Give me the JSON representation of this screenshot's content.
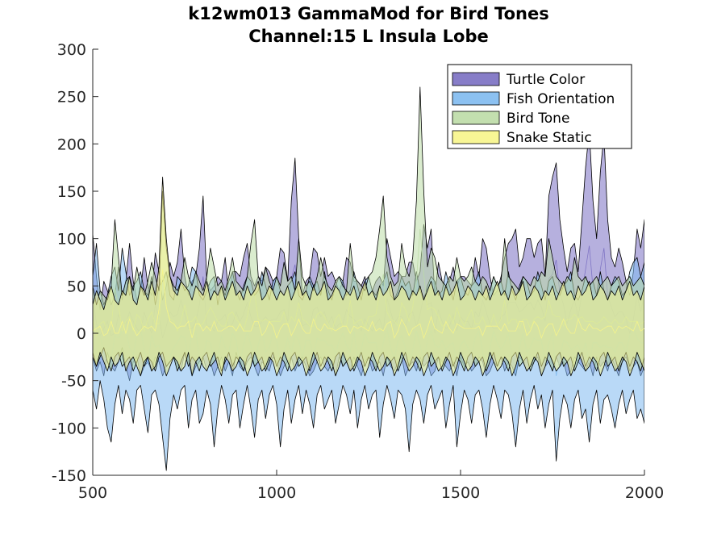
{
  "chart_data": {
    "type": "area",
    "title_lines": [
      "k12wm013 GammaMod for Bird Tones",
      "Channel:15 L Insula Lobe"
    ],
    "xlabel": "",
    "ylabel": "",
    "xlim": [
      500,
      2000
    ],
    "ylim": [
      -150,
      300
    ],
    "x_ticks": [
      500,
      1000,
      1500,
      2000
    ],
    "y_ticks": [
      300,
      250,
      200,
      150,
      100,
      50,
      0,
      -50,
      -100,
      -150
    ],
    "x_tick_labels": [
      "500",
      "1000",
      "1500",
      "2000"
    ],
    "y_tick_labels": [
      "300",
      "250",
      "200",
      "150",
      "100",
      "50",
      "0",
      "-50",
      "-100",
      "-150"
    ],
    "legend_position": "top-right",
    "x_step": 10,
    "series": [
      {
        "name": "Turtle Color",
        "color": "#7a6fc2",
        "upper": [
          105,
          60,
          25,
          55,
          45,
          30,
          40,
          70,
          35,
          55,
          95,
          55,
          35,
          45,
          80,
          50,
          40,
          85,
          65,
          35,
          50,
          75,
          60,
          75,
          110,
          60,
          40,
          55,
          60,
          90,
          145,
          55,
          45,
          50,
          60,
          55,
          80,
          40,
          65,
          65,
          60,
          80,
          95,
          60,
          50,
          60,
          55,
          70,
          65,
          55,
          60,
          90,
          85,
          55,
          140,
          185,
          100,
          40,
          55,
          60,
          90,
          85,
          60,
          80,
          60,
          65,
          55,
          45,
          55,
          80,
          75,
          55,
          55,
          50,
          60,
          40,
          45,
          55,
          60,
          50,
          100,
          80,
          60,
          65,
          60,
          60,
          75,
          75,
          55,
          65,
          115,
          90,
          110,
          40,
          75,
          55,
          45,
          55,
          70,
          50,
          60,
          60,
          55,
          50,
          80,
          60,
          100,
          90,
          60,
          40,
          45,
          60,
          80,
          95,
          100,
          110,
          70,
          80,
          100,
          100,
          80,
          95,
          100,
          60,
          145,
          165,
          180,
          120,
          90,
          65,
          90,
          95,
          65,
          120,
          175,
          215,
          140,
          100,
          170,
          210,
          120,
          80,
          70,
          90,
          75,
          55,
          40,
          65,
          110,
          90,
          120
        ],
        "lower": [
          -25,
          -40,
          -30,
          -45,
          -20,
          -35,
          -40,
          -30,
          -15,
          -35,
          -50,
          -30,
          -25,
          -45,
          -35,
          -30,
          -40,
          -25,
          -30,
          -45,
          -35,
          -30,
          -25,
          -35,
          -40,
          -20,
          -30,
          -45,
          -35,
          -30,
          -25,
          -40,
          -30,
          -45,
          -35,
          -25,
          -40,
          -30,
          -45,
          -20,
          -35,
          -40,
          -30,
          -25,
          -35,
          -45,
          -30,
          -35,
          -40,
          -25,
          -30,
          -45,
          -35,
          -30,
          -25,
          -40,
          -30,
          -25,
          -35,
          -45,
          -40,
          -30,
          -25,
          -35,
          -40,
          -30,
          -45,
          -25,
          -35,
          -30,
          -40,
          -25,
          -35,
          -45,
          -30,
          -25,
          -40,
          -35,
          -30,
          -45,
          -25,
          -35,
          -40,
          -30,
          -25,
          -45,
          -35,
          -30,
          -40,
          -25,
          -35,
          -30,
          -45,
          -40,
          -25,
          -30,
          -35,
          -40,
          -30,
          -45,
          -25,
          -35,
          -30,
          -40,
          -35,
          -25,
          -30,
          -45,
          -40,
          -30,
          -35,
          -25,
          -40,
          -30,
          -35,
          -45,
          -25,
          -30,
          -40,
          -35,
          -30,
          -25,
          -45,
          -35,
          -30,
          -40,
          -25,
          -35,
          -30,
          -45,
          -40,
          -25,
          -30,
          -35,
          -40,
          -30,
          -45,
          -25,
          -35,
          -30,
          -40,
          -25,
          -35,
          -45,
          -30,
          -25,
          -40,
          -35,
          -30,
          -45,
          -35
        ]
      },
      {
        "name": "Fish Orientation",
        "color": "#7fbaf0",
        "upper": [
          60,
          95,
          45,
          30,
          40,
          60,
          70,
          45,
          90,
          65,
          40,
          50,
          55,
          65,
          45,
          40,
          60,
          30,
          50,
          55,
          65,
          40,
          35,
          60,
          55,
          45,
          50,
          70,
          65,
          40,
          35,
          45,
          55,
          60,
          30,
          50,
          40,
          55,
          65,
          45,
          35,
          50,
          60,
          55,
          40,
          45,
          65,
          50,
          35,
          55,
          60,
          45,
          40,
          50,
          55,
          65,
          40,
          35,
          45,
          60,
          50,
          55,
          40,
          65,
          45,
          35,
          50,
          60,
          55,
          40,
          45,
          65,
          50,
          35,
          55,
          60,
          45,
          40,
          50,
          55,
          65,
          40,
          35,
          45,
          60,
          50,
          55,
          40,
          65,
          45,
          35,
          50,
          60,
          55,
          40,
          45,
          65,
          50,
          35,
          55,
          60,
          45,
          40,
          50,
          55,
          65,
          40,
          35,
          45,
          60,
          50,
          55,
          40,
          65,
          45,
          35,
          50,
          60,
          55,
          40,
          45,
          65,
          50,
          35,
          55,
          60,
          45,
          40,
          50,
          55,
          65,
          40,
          35,
          45,
          60,
          50,
          55,
          40,
          65,
          45,
          35,
          50,
          60,
          55,
          40,
          45,
          65,
          75,
          80,
          60,
          75
        ],
        "lower": [
          -60,
          -80,
          -50,
          -70,
          -100,
          -115,
          -75,
          -55,
          -85,
          -60,
          -70,
          -95,
          -60,
          -55,
          -80,
          -105,
          -65,
          -60,
          -75,
          -110,
          -145,
          -90,
          -65,
          -80,
          -60,
          -55,
          -100,
          -70,
          -60,
          -95,
          -85,
          -60,
          -75,
          -120,
          -80,
          -55,
          -70,
          -95,
          -65,
          -60,
          -100,
          -75,
          -55,
          -80,
          -110,
          -70,
          -60,
          -90,
          -65,
          -55,
          -75,
          -120,
          -80,
          -60,
          -95,
          -70,
          -55,
          -85,
          -60,
          -75,
          -100,
          -65,
          -55,
          -80,
          -70,
          -60,
          -95,
          -75,
          -55,
          -65,
          -85,
          -60,
          -100,
          -70,
          -55,
          -80,
          -65,
          -60,
          -110,
          -75,
          -55,
          -70,
          -90,
          -60,
          -65,
          -80,
          -125,
          -75,
          -60,
          -70,
          -95,
          -65,
          -55,
          -80,
          -70,
          -60,
          -100,
          -75,
          -55,
          -120,
          -85,
          -60,
          -70,
          -95,
          -65,
          -60,
          -80,
          -110,
          -75,
          -55,
          -70,
          -90,
          -60,
          -65,
          -85,
          -120,
          -80,
          -60,
          -95,
          -70,
          -55,
          -80,
          -65,
          -100,
          -75,
          -60,
          -135,
          -90,
          -65,
          -75,
          -100,
          -70,
          -60,
          -90,
          -80,
          -115,
          -75,
          -60,
          -95,
          -70,
          -65,
          -80,
          -100,
          -75,
          -60,
          -85,
          -70,
          -60,
          -90,
          -80,
          -95
        ]
      },
      {
        "name": "Bird Tone",
        "color": "#bcdca6",
        "upper": [
          50,
          30,
          45,
          40,
          35,
          50,
          120,
          80,
          40,
          55,
          60,
          45,
          70,
          50,
          40,
          55,
          75,
          60,
          45,
          150,
          90,
          60,
          50,
          45,
          55,
          80,
          60,
          50,
          65,
          55,
          45,
          60,
          90,
          70,
          50,
          55,
          45,
          60,
          80,
          55,
          50,
          45,
          60,
          95,
          120,
          60,
          50,
          70,
          55,
          45,
          60,
          50,
          75,
          55,
          60,
          45,
          100,
          60,
          50,
          55,
          45,
          60,
          80,
          60,
          50,
          45,
          55,
          60,
          50,
          45,
          95,
          60,
          55,
          50,
          45,
          60,
          65,
          80,
          110,
          145,
          80,
          60,
          50,
          55,
          95,
          70,
          60,
          80,
          140,
          260,
          150,
          70,
          90,
          80,
          60,
          55,
          50,
          60,
          55,
          80,
          60,
          55,
          60,
          70,
          55,
          50,
          60,
          55,
          45,
          60,
          50,
          55,
          100,
          60,
          55,
          50,
          45,
          60,
          55,
          50,
          60,
          55,
          65,
          60,
          100,
          80,
          60,
          55,
          50,
          60,
          55,
          80,
          60,
          55,
          60,
          50,
          55,
          60,
          50,
          55,
          60,
          50,
          55,
          60,
          50,
          55,
          60,
          50,
          55,
          60,
          50
        ],
        "lower": [
          -20,
          -35,
          -25,
          -15,
          -30,
          -40,
          -25,
          -20,
          -35,
          -30,
          -25,
          -40,
          -30,
          -20,
          -35,
          -25,
          -30,
          -40,
          -25,
          -20,
          -35,
          -30,
          -25,
          -40,
          -30,
          -20,
          -35,
          -25,
          -30,
          -40,
          -25,
          -20,
          -35,
          -30,
          -25,
          -40,
          -30,
          -20,
          -35,
          -25,
          -30,
          -40,
          -25,
          -20,
          -35,
          -30,
          -25,
          -40,
          -30,
          -20,
          -35,
          -25,
          -30,
          -40,
          -25,
          -20,
          -35,
          -30,
          -25,
          -40,
          -30,
          -20,
          -35,
          -25,
          -30,
          -40,
          -25,
          -20,
          -35,
          -30,
          -25,
          -40,
          -30,
          -20,
          -35,
          -25,
          -30,
          -40,
          -25,
          -20,
          -35,
          -30,
          -25,
          -40,
          -30,
          -20,
          -35,
          -25,
          -30,
          -40,
          -25,
          -20,
          -35,
          -30,
          -25,
          -40,
          -30,
          -20,
          -35,
          -25,
          -30,
          -40,
          -25,
          -20,
          -35,
          -30,
          -25,
          -40,
          -30,
          -20,
          -35,
          -25,
          -30,
          -40,
          -25,
          -20,
          -35,
          -30,
          -25,
          -40,
          -30,
          -20,
          -35,
          -25,
          -30,
          -40,
          -25,
          -20,
          -35,
          -30,
          -25,
          -40,
          -30,
          -20,
          -35,
          -25,
          -30,
          -40,
          -25,
          -20,
          -35,
          -30,
          -25,
          -40,
          -30,
          -20,
          -35,
          -25,
          -30,
          -40,
          -25
        ]
      },
      {
        "name": "Snake Static",
        "color": "#f7f58a",
        "upper": [
          30,
          45,
          35,
          25,
          40,
          50,
          35,
          30,
          45,
          40,
          60,
          35,
          30,
          50,
          45,
          35,
          55,
          40,
          70,
          165,
          100,
          60,
          45,
          40,
          55,
          50,
          45,
          35,
          50,
          45,
          40,
          55,
          35,
          45,
          40,
          50,
          35,
          45,
          55,
          40,
          45,
          35,
          50,
          40,
          45,
          55,
          35,
          40,
          50,
          45,
          35,
          45,
          40,
          50,
          35,
          45,
          55,
          40,
          45,
          35,
          50,
          40,
          45,
          55,
          35,
          40,
          50,
          45,
          35,
          45,
          40,
          50,
          35,
          45,
          55,
          40,
          45,
          35,
          50,
          40,
          45,
          55,
          35,
          40,
          50,
          45,
          35,
          45,
          40,
          50,
          35,
          45,
          55,
          40,
          45,
          35,
          50,
          40,
          45,
          55,
          35,
          40,
          50,
          45,
          35,
          45,
          40,
          50,
          35,
          45,
          55,
          40,
          45,
          35,
          50,
          40,
          45,
          55,
          35,
          40,
          50,
          45,
          35,
          45,
          40,
          50,
          35,
          45,
          55,
          40,
          45,
          35,
          50,
          40,
          45,
          55,
          35,
          40,
          50,
          45,
          35,
          45,
          40,
          50,
          35,
          45,
          55,
          40,
          45,
          35,
          50
        ],
        "lower": [
          -25,
          -35,
          -20,
          -30,
          -40,
          -25,
          -35,
          -30,
          -20,
          -40,
          -30,
          -25,
          -35,
          -45,
          -30,
          -25,
          -40,
          -35,
          -20,
          -30,
          -45,
          -35,
          -25,
          -30,
          -40,
          -35,
          -20,
          -45,
          -30,
          -25,
          -35,
          -40,
          -30,
          -20,
          -35,
          -45,
          -25,
          -30,
          -40,
          -35,
          -25,
          -30,
          -45,
          -35,
          -20,
          -30,
          -40,
          -35,
          -25,
          -30,
          -45,
          -35,
          -20,
          -30,
          -40,
          -35,
          -25,
          -30,
          -45,
          -35,
          -20,
          -30,
          -40,
          -35,
          -25,
          -30,
          -45,
          -35,
          -20,
          -30,
          -40,
          -35,
          -25,
          -30,
          -45,
          -35,
          -20,
          -30,
          -40,
          -35,
          -25,
          -30,
          -45,
          -35,
          -20,
          -30,
          -40,
          -35,
          -25,
          -30,
          -45,
          -35,
          -20,
          -30,
          -40,
          -35,
          -25,
          -30,
          -45,
          -35,
          -20,
          -30,
          -40,
          -35,
          -25,
          -30,
          -45,
          -35,
          -20,
          -30,
          -40,
          -35,
          -25,
          -30,
          -45,
          -35,
          -20,
          -30,
          -40,
          -35,
          -25,
          -30,
          -45,
          -35,
          -20,
          -30,
          -40,
          -35,
          -25,
          -30,
          -45,
          -35,
          -20,
          -30,
          -40,
          -35,
          -25,
          -30,
          -45,
          -35,
          -20,
          -30,
          -40,
          -35,
          -25,
          -30,
          -45,
          -35,
          -20,
          -30,
          -40
        ]
      }
    ]
  }
}
